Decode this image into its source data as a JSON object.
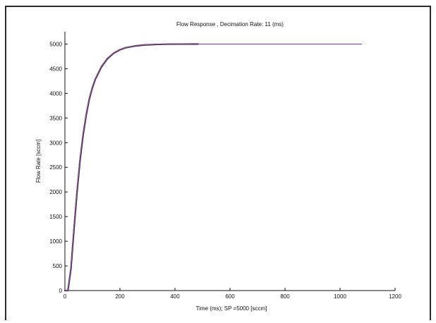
{
  "chart_data": {
    "type": "line",
    "title": "Flow Response , Decimation Rate: 11 (ms)",
    "xlabel": "Time (ms); SP =5000 [sccm]",
    "ylabel": "Flow Rate [sccm]",
    "xlim": [
      0,
      1200
    ],
    "ylim": [
      0,
      5250
    ],
    "xticks": [
      0,
      200,
      400,
      600,
      800,
      1000,
      1200
    ],
    "yticks": [
      0,
      500,
      1000,
      1500,
      2000,
      2500,
      3000,
      3500,
      4000,
      4500,
      5000
    ],
    "grid": false,
    "legend": "none",
    "series": [
      {
        "color": "#1a1a1a",
        "x": [
          0,
          11,
          22,
          33,
          44,
          55,
          66,
          77,
          88,
          99,
          110,
          132,
          154,
          176,
          198,
          220,
          253,
          286,
          330,
          374,
          418,
          462,
          484
        ],
        "y": [
          0,
          0,
          450,
          1250,
          2000,
          2650,
          3150,
          3550,
          3870,
          4100,
          4280,
          4530,
          4700,
          4810,
          4880,
          4925,
          4960,
          4980,
          4992,
          4997,
          4999,
          5000,
          5000
        ]
      },
      {
        "color": "#c44a3a",
        "x": [
          0,
          11,
          22,
          33,
          44,
          55,
          66,
          77,
          88,
          99,
          110,
          132,
          154,
          176,
          198,
          220,
          253,
          286,
          330,
          374,
          418,
          462
        ],
        "y": [
          0,
          0,
          500,
          1320,
          2070,
          2710,
          3200,
          3590,
          3900,
          4130,
          4300,
          4550,
          4715,
          4820,
          4888,
          4930,
          4963,
          4982,
          4993,
          4998,
          5000,
          5000
        ]
      },
      {
        "color": "#3a7a3a",
        "x": [
          0,
          11,
          22,
          33,
          44,
          55,
          66,
          77,
          88,
          99,
          110,
          132,
          154,
          176,
          198,
          220,
          253,
          286,
          330,
          374,
          418,
          462
        ],
        "y": [
          0,
          0,
          480,
          1290,
          2040,
          2690,
          3180,
          3575,
          3890,
          4120,
          4290,
          4540,
          4708,
          4815,
          4884,
          4928,
          4962,
          4981,
          4992,
          4997,
          4999,
          5000
        ]
      },
      {
        "color": "#8a4aa8",
        "x": [
          0,
          11,
          22,
          33,
          44,
          55,
          66,
          77,
          88,
          99,
          110,
          132,
          154,
          176,
          198,
          220,
          253,
          286,
          330,
          374,
          418,
          462,
          550,
          660,
          770,
          880,
          990,
          1078
        ],
        "y": [
          0,
          0,
          470,
          1280,
          2030,
          2680,
          3170,
          3565,
          3880,
          4110,
          4285,
          4535,
          4705,
          4812,
          4882,
          4927,
          4961,
          4981,
          4993,
          4998,
          5000,
          5000,
          5000,
          5000,
          5000,
          5000,
          5000,
          5000
        ]
      }
    ]
  }
}
